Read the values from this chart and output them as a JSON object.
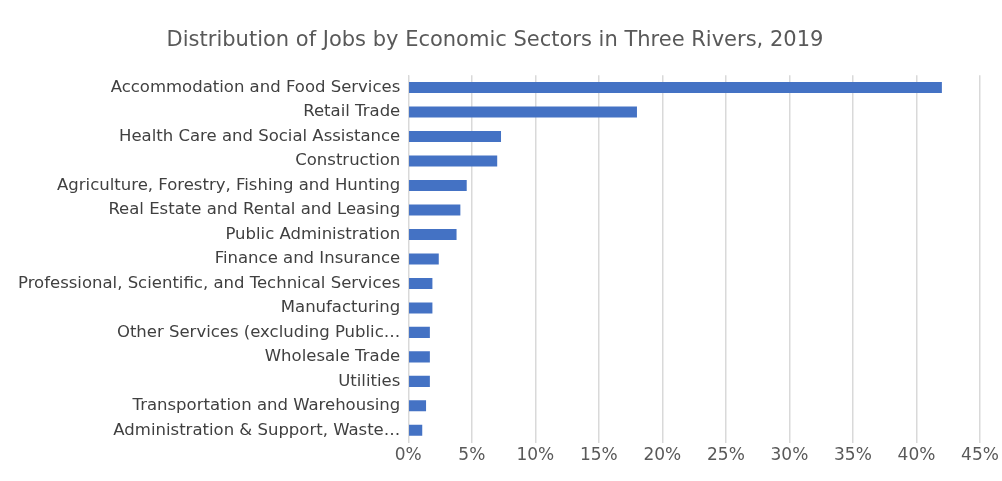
{
  "chart_data": {
    "type": "bar",
    "orientation": "horizontal",
    "title": "Distribution of Jobs by Economic Sectors in Three Rivers, 2019",
    "categories": [
      "Accommodation and Food Services",
      "Retail Trade",
      "Health Care and Social Assistance",
      "Construction",
      "Agriculture, Forestry, Fishing and Hunting",
      "Real Estate and Rental and Leasing",
      "Public Administration",
      "Finance and Insurance",
      "Professional, Scientific, and Technical Services",
      "Manufacturing",
      "Other Services (excluding Public…",
      "Wholesale Trade",
      "Utilities",
      "Transportation and Warehousing",
      "Administration & Support, Waste…"
    ],
    "values": [
      42,
      18,
      7.3,
      7,
      4.6,
      4.1,
      3.8,
      2.4,
      1.9,
      1.9,
      1.7,
      1.7,
      1.7,
      1.4,
      1.1
    ],
    "color": "#4472c4",
    "xlim": [
      0,
      45
    ],
    "xticks": [
      {
        "value": 0,
        "label": "0%"
      },
      {
        "value": 5,
        "label": "5%"
      },
      {
        "value": 10,
        "label": "10%"
      },
      {
        "value": 15,
        "label": "15%"
      },
      {
        "value": 20,
        "label": "20%"
      },
      {
        "value": 25,
        "label": "25%"
      },
      {
        "value": 30,
        "label": "30%"
      },
      {
        "value": 35,
        "label": "35%"
      },
      {
        "value": 40,
        "label": "40%"
      },
      {
        "value": 45,
        "label": "45%"
      }
    ],
    "grid": "x"
  }
}
